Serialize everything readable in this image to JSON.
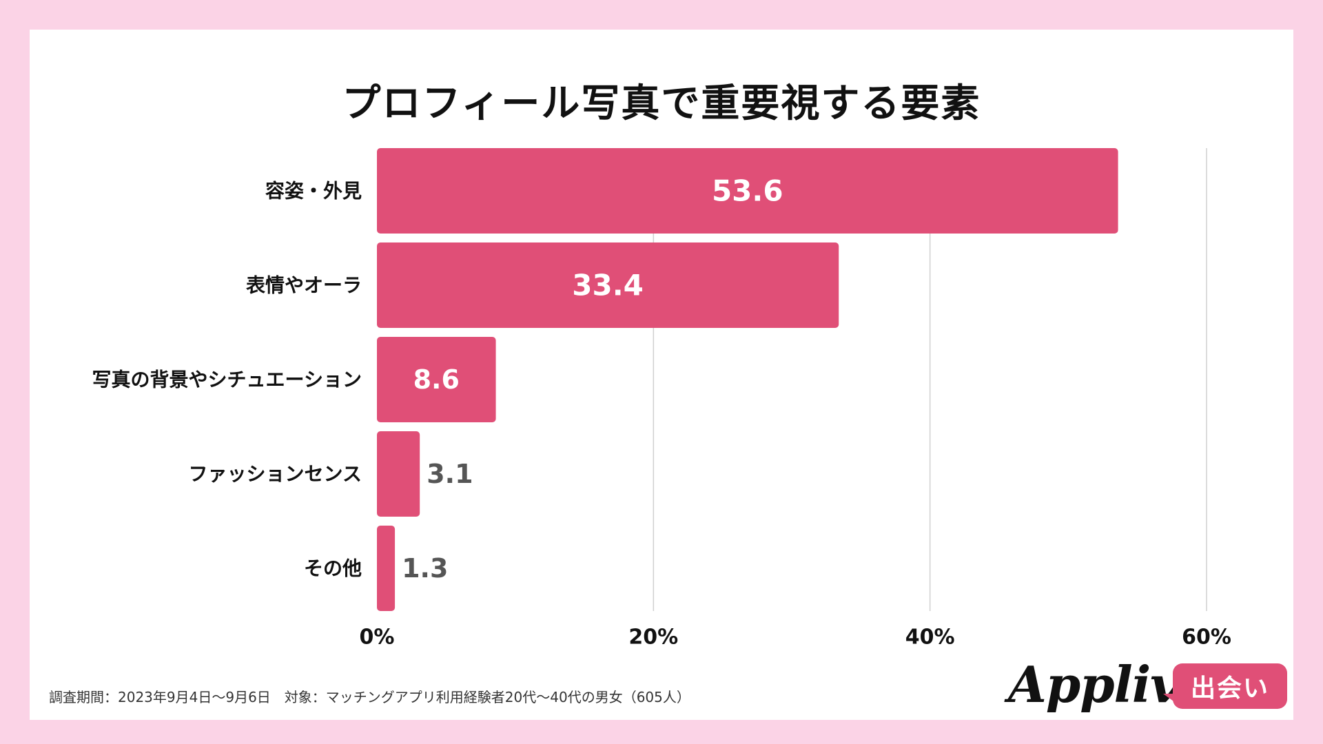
{
  "chart_data": {
    "type": "bar",
    "orientation": "horizontal",
    "title": "プロフィール写真で重要視する要素",
    "categories": [
      "容姿・外見",
      "表情やオーラ",
      "写真の背景やシチュエーション",
      "ファッションセンス",
      "その他"
    ],
    "values": [
      53.6,
      33.4,
      8.6,
      3.1,
      1.3
    ],
    "value_labels": [
      "53.6",
      "33.4",
      "8.6",
      "3.1",
      "1.3"
    ],
    "xlim": [
      0,
      60
    ],
    "x_ticks": [
      0,
      20,
      40,
      60
    ],
    "x_tick_labels": [
      "0%",
      "20%",
      "40%",
      "60%"
    ],
    "xlabel": "",
    "ylabel": "",
    "grid": true,
    "bar_color": "#e04f77"
  },
  "footnote": "調査期間：2023年9月4日〜9月6日　対象：マッチングアプリ利用経験者20代〜40代の男女（605人）",
  "logo": {
    "wordmark": "Appliv",
    "badge": "出会い"
  },
  "colors": {
    "background": "#fbd3e6",
    "card": "#ffffff",
    "bar": "#e04f77",
    "gridline": "#d0d0d0"
  }
}
